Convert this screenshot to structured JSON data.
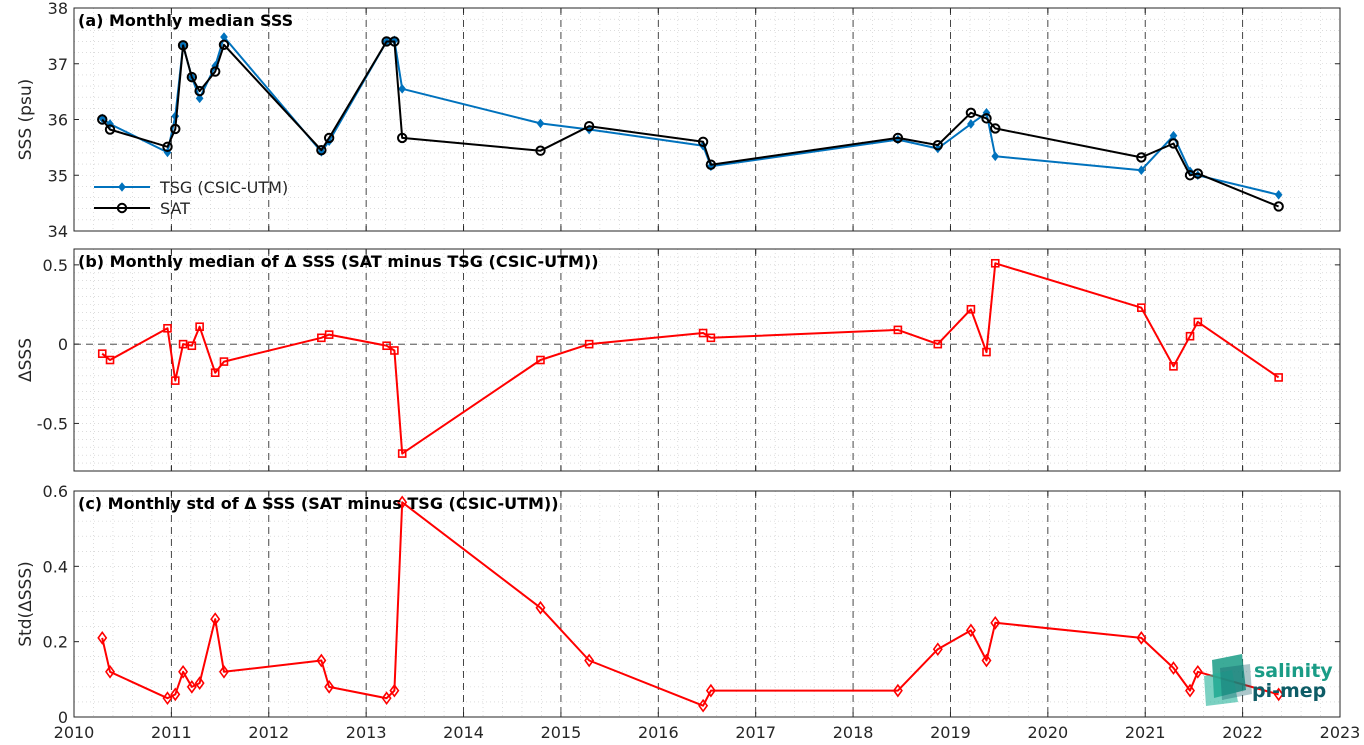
{
  "chart_data": [
    {
      "type": "line",
      "title": "(a) Monthly median SSS",
      "xlabel": "",
      "ylabel": "SSS (psu)",
      "xlim": [
        2010,
        2023
      ],
      "ylim": [
        34,
        38
      ],
      "xticks": [
        "2010",
        "2011",
        "2012",
        "2013",
        "2014",
        "2015",
        "2016",
        "2017",
        "2018",
        "2019",
        "2020",
        "2021",
        "2022",
        "2023"
      ],
      "yticks": [
        "34",
        "35",
        "36",
        "37",
        "38"
      ],
      "grid": true,
      "legend": "bottom-left",
      "series": [
        {
          "name": "TSG (CSIC-UTM)",
          "color": "#0072BD",
          "marker": "filled-diamond",
          "x": [
            2010.29,
            2010.37,
            2010.96,
            2011.04,
            2011.12,
            2011.21,
            2011.29,
            2011.45,
            2011.54,
            2012.54,
            2012.62,
            2013.21,
            2013.29,
            2013.37,
            2014.79,
            2015.29,
            2016.46,
            2016.54,
            2018.46,
            2018.87,
            2019.21,
            2019.37,
            2019.46,
            2020.96,
            2021.29,
            2021.46,
            2021.54,
            2022.37
          ],
          "y": [
            36.02,
            35.92,
            35.41,
            36.06,
            37.33,
            36.76,
            36.38,
            36.96,
            37.48,
            35.42,
            35.61,
            37.4,
            37.42,
            36.55,
            35.93,
            35.82,
            35.53,
            35.16,
            35.64,
            35.48,
            35.92,
            36.12,
            35.34,
            35.09,
            35.71,
            35.07,
            35.0,
            34.65
          ]
        },
        {
          "name": "SAT",
          "color": "#000000",
          "marker": "open-circle",
          "x": [
            2010.29,
            2010.37,
            2010.96,
            2011.04,
            2011.12,
            2011.21,
            2011.29,
            2011.45,
            2011.54,
            2012.54,
            2012.62,
            2013.21,
            2013.29,
            2013.37,
            2014.79,
            2015.29,
            2016.46,
            2016.54,
            2018.46,
            2018.87,
            2019.21,
            2019.37,
            2019.46,
            2020.96,
            2021.29,
            2021.46,
            2021.54,
            2022.37
          ],
          "y": [
            36.0,
            35.82,
            35.51,
            35.83,
            37.33,
            36.76,
            36.51,
            36.86,
            37.34,
            35.45,
            35.67,
            37.4,
            37.4,
            35.67,
            35.44,
            35.88,
            35.6,
            35.19,
            35.67,
            35.54,
            36.12,
            36.02,
            35.84,
            35.32,
            35.57,
            35.0,
            35.03,
            34.44
          ]
        }
      ]
    },
    {
      "type": "line",
      "title": "(b) Monthly median of Δ SSS (SAT minus TSG (CSIC-UTM))",
      "xlabel": "",
      "ylabel": "ΔSSS",
      "xlim": [
        2010,
        2023
      ],
      "ylim": [
        -0.8,
        0.6
      ],
      "xticks": [
        "2010",
        "2011",
        "2012",
        "2013",
        "2014",
        "2015",
        "2016",
        "2017",
        "2018",
        "2019",
        "2020",
        "2021",
        "2022",
        "2023"
      ],
      "yticks": [
        "-0.5",
        "0",
        "0.5"
      ],
      "grid": true,
      "zero_line": "dashed",
      "series": [
        {
          "color": "#FF0000",
          "marker": "open-square",
          "x": [
            2010.29,
            2010.37,
            2010.96,
            2011.04,
            2011.12,
            2011.21,
            2011.29,
            2011.45,
            2011.54,
            2012.54,
            2012.62,
            2013.21,
            2013.29,
            2013.37,
            2014.79,
            2015.29,
            2016.46,
            2016.54,
            2018.46,
            2018.87,
            2019.21,
            2019.37,
            2019.46,
            2020.96,
            2021.29,
            2021.46,
            2021.54,
            2022.37
          ],
          "y": [
            -0.06,
            -0.1,
            0.1,
            -0.23,
            0.0,
            -0.01,
            0.11,
            -0.18,
            -0.11,
            0.04,
            0.06,
            -0.01,
            -0.04,
            -0.69,
            -0.1,
            0.0,
            0.07,
            0.04,
            0.09,
            0.0,
            0.22,
            -0.05,
            0.51,
            0.23,
            -0.14,
            0.05,
            0.14,
            -0.21
          ]
        }
      ]
    },
    {
      "type": "line",
      "title": "(c) Monthly std of Δ SSS (SAT minus TSG (CSIC-UTM))",
      "xlabel": "",
      "ylabel": "Std(ΔSSS)",
      "xlim": [
        2010,
        2023
      ],
      "ylim": [
        0,
        0.6
      ],
      "xticks": [
        "2010",
        "2011",
        "2012",
        "2013",
        "2014",
        "2015",
        "2016",
        "2017",
        "2018",
        "2019",
        "2020",
        "2021",
        "2022",
        "2023"
      ],
      "yticks": [
        "0",
        "0.2",
        "0.4",
        "0.6"
      ],
      "grid": true,
      "series": [
        {
          "color": "#FF0000",
          "marker": "open-diamond",
          "x": [
            2010.29,
            2010.37,
            2010.96,
            2011.04,
            2011.12,
            2011.21,
            2011.29,
            2011.45,
            2011.54,
            2012.54,
            2012.62,
            2013.21,
            2013.29,
            2013.37,
            2014.79,
            2015.29,
            2016.46,
            2016.54,
            2018.46,
            2018.87,
            2019.21,
            2019.37,
            2019.46,
            2020.96,
            2021.29,
            2021.46,
            2021.54,
            2022.37
          ],
          "y": [
            0.21,
            0.12,
            0.05,
            0.06,
            0.12,
            0.08,
            0.09,
            0.26,
            0.12,
            0.15,
            0.08,
            0.05,
            0.07,
            0.57,
            0.29,
            0.15,
            0.03,
            0.07,
            0.07,
            0.18,
            0.23,
            0.15,
            0.25,
            0.21,
            0.13,
            0.07,
            0.12,
            0.06
          ]
        }
      ]
    }
  ],
  "logo": {
    "line1": "salinity",
    "line2": "pi-mep",
    "color_primary": "#1a9c86",
    "color_secondary": "#0d5c66"
  }
}
